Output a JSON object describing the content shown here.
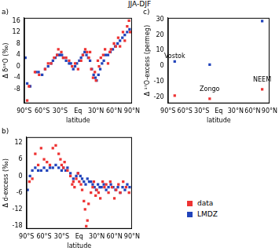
{
  "title": "JJA-DJF",
  "legend": "lower right",
  "chart_data": [
    {
      "type": "scatter",
      "title": "a)",
      "xlabel": "latitude",
      "ylabel": "Δ δ¹⁸O (‰)",
      "xlim": [
        -90,
        90
      ],
      "xticks": [
        {
          "value": -90,
          "label": "90°S"
        },
        {
          "value": -60,
          "label": "60°S"
        },
        {
          "value": -30,
          "label": "30°S"
        },
        {
          "value": 0,
          "label": "Eq"
        },
        {
          "value": 30,
          "label": "30°N"
        },
        {
          "value": 60,
          "label": "60°N"
        },
        {
          "value": 90,
          "label": "90°N"
        }
      ],
      "ylim": [
        -13,
        17
      ],
      "yticks": [
        -8,
        -4,
        0,
        4,
        8,
        12,
        16
      ],
      "grid": false,
      "series": [
        {
          "name": "data",
          "color": "#ee3333",
          "marker": "square",
          "x": [
            -85,
            -82,
            -72,
            -65,
            -55,
            -50,
            -45,
            -40,
            -35,
            -33,
            -28,
            -25,
            -20,
            -15,
            -10,
            -5,
            0,
            5,
            8,
            12,
            15,
            18,
            20,
            22,
            25,
            28,
            30,
            33,
            35,
            38,
            42,
            45,
            50,
            53,
            55,
            60,
            63,
            67,
            70,
            75,
            78,
            82,
            85,
            87
          ],
          "values": [
            -12,
            -7,
            -2,
            -3,
            -1,
            1,
            1,
            3,
            4,
            6,
            5,
            3,
            3,
            2,
            0,
            1,
            -1,
            2,
            4,
            6,
            5,
            3,
            5,
            -1,
            -4,
            -2,
            -5,
            2,
            0,
            3,
            4,
            6,
            1,
            5,
            6,
            8,
            7,
            10,
            7,
            12,
            9,
            14,
            16,
            12
          ]
        },
        {
          "name": "LMDZ",
          "color": "#2244bb",
          "marker": "square",
          "x": [
            -88,
            -85,
            -80,
            -70,
            -66,
            -60,
            -55,
            -50,
            -45,
            -42,
            -38,
            -35,
            -32,
            -30,
            -27,
            -24,
            -20,
            -15,
            -12,
            -8,
            -5,
            -2,
            2,
            5,
            8,
            11,
            14,
            17,
            20,
            23,
            26,
            29,
            31,
            34,
            37,
            40,
            43,
            46,
            50,
            54,
            58,
            62,
            66,
            70,
            74,
            78,
            82,
            86
          ],
          "values": [
            3,
            -6,
            -7,
            -2,
            -2,
            -3,
            -1,
            0,
            1,
            2,
            3,
            4,
            4,
            4,
            4,
            3,
            2,
            1,
            1,
            -1,
            0,
            1,
            2,
            3,
            4,
            5,
            4,
            3,
            2,
            -1,
            -3,
            -4,
            -5,
            -3,
            -1,
            1,
            2,
            4,
            4,
            5,
            6,
            7,
            8,
            9,
            10,
            11,
            12,
            13
          ]
        }
      ]
    },
    {
      "type": "scatter",
      "title": "b)",
      "xlabel": "latitude",
      "ylabel": "Δ d-excess (‰)",
      "xlim": [
        -90,
        90
      ],
      "xticks": [
        {
          "value": -90,
          "label": "90°S"
        },
        {
          "value": -60,
          "label": "60°S"
        },
        {
          "value": -30,
          "label": "30°S"
        },
        {
          "value": 0,
          "label": "Eq"
        },
        {
          "value": 30,
          "label": "30°N"
        },
        {
          "value": 60,
          "label": "60°N"
        },
        {
          "value": 90,
          "label": "90°N"
        }
      ],
      "ylim": [
        -19,
        14
      ],
      "yticks": [
        -18,
        -12,
        -6,
        0,
        6,
        12
      ],
      "grid": false,
      "series": [
        {
          "name": "data",
          "color": "#ee3333",
          "marker": "square",
          "x": [
            -85,
            -80,
            -75,
            -70,
            -65,
            -60,
            -55,
            -50,
            -45,
            -40,
            -35,
            -32,
            -30,
            -27,
            -25,
            -20,
            -15,
            -12,
            -10,
            -8,
            -5,
            -2,
            0,
            3,
            5,
            8,
            10,
            12,
            14,
            16,
            20,
            23,
            25,
            28,
            30,
            33,
            36,
            40,
            43,
            46,
            50,
            53,
            56,
            60,
            63,
            67,
            70,
            75,
            80,
            85
          ],
          "values": [
            -2,
            -1,
            8,
            4,
            10,
            6,
            5,
            4,
            10,
            11,
            8,
            6,
            4,
            3,
            5,
            2,
            0,
            -3,
            -2,
            -4,
            -1,
            1,
            -2,
            -3,
            -5,
            -9,
            -12,
            -18,
            -16,
            -10,
            -6,
            -4,
            -2,
            -7,
            -5,
            -6,
            -8,
            -2,
            -4,
            -3,
            -6,
            -2,
            -4,
            -8,
            -5,
            -3,
            -6,
            -2,
            -4,
            -6
          ]
        },
        {
          "name": "LMDZ",
          "color": "#2244bb",
          "marker": "square",
          "x": [
            -88,
            -84,
            -80,
            -75,
            -70,
            -65,
            -60,
            -55,
            -50,
            -45,
            -40,
            -35,
            -30,
            -27,
            -23,
            -20,
            -15,
            -10,
            -5,
            -2,
            2,
            5,
            8,
            11,
            14,
            17,
            20,
            23,
            26,
            29,
            32,
            35,
            38,
            42,
            46,
            50,
            54,
            58,
            62,
            66,
            70,
            74,
            78,
            82,
            86
          ],
          "values": [
            -5,
            0,
            2,
            3,
            2,
            2,
            3,
            2,
            3,
            3,
            4,
            3,
            2,
            3,
            2,
            3,
            1,
            -1,
            0,
            1,
            0,
            -1,
            -2,
            -3,
            -1,
            -2,
            -2,
            -3,
            -4,
            -5,
            -3,
            -4,
            -4,
            -3,
            -5,
            -4,
            -3,
            -4,
            -5,
            -4,
            -6,
            -4,
            -5,
            -3,
            -4
          ]
        }
      ]
    },
    {
      "type": "scatter",
      "title": "c)",
      "xlabel": "latitude",
      "ylabel": "Δ ¹⁷O-excess (permeg)",
      "xlim": [
        -90,
        90
      ],
      "xticks": [
        {
          "value": -90,
          "label": "90°S"
        },
        {
          "value": -60,
          "label": "60°S"
        },
        {
          "value": -30,
          "label": "30°S"
        },
        {
          "value": 0,
          "label": "Eq"
        },
        {
          "value": 30,
          "label": "30°N"
        },
        {
          "value": 60,
          "label": "60°N"
        },
        {
          "value": 90,
          "label": "90°N"
        }
      ],
      "ylim": [
        -24,
        31
      ],
      "yticks": [
        -20,
        -10,
        0,
        10,
        20,
        30
      ],
      "grid": false,
      "annotations": [
        {
          "text": "Vostok",
          "x": -78,
          "y": 6
        },
        {
          "text": "Zongo",
          "x": -16,
          "y": -15
        },
        {
          "text": "NEEM",
          "x": 77,
          "y": -9
        }
      ],
      "series": [
        {
          "name": "data",
          "color": "#ee3333",
          "marker": "square",
          "x": [
            -78,
            -16,
            77
          ],
          "values": [
            -19,
            -21,
            -15
          ]
        },
        {
          "name": "LMDZ",
          "color": "#2244bb",
          "marker": "square",
          "x": [
            -78,
            -16,
            77
          ],
          "values": [
            3,
            1,
            29
          ]
        }
      ]
    }
  ]
}
